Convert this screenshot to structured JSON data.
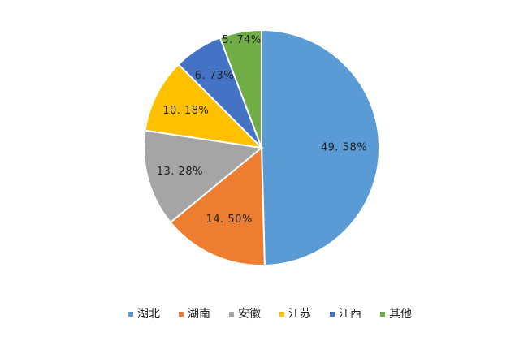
{
  "chart_data": {
    "type": "pie",
    "categories": [
      "湖北",
      "湖南",
      "安徽",
      "江苏",
      "江西",
      "其他"
    ],
    "values": [
      49.58,
      14.5,
      13.28,
      10.18,
      6.73,
      5.74
    ],
    "labels": [
      "49. 58%",
      "14. 50%",
      "13. 28%",
      "10. 18%",
      "6. 73%",
      "5. 74%"
    ],
    "colors": [
      "#5B9BD5",
      "#ED7D31",
      "#A5A5A5",
      "#FFC000",
      "#4472C4",
      "#70AD47"
    ],
    "start_angle": "12 o'clock",
    "direction": "clockwise",
    "legend": "bottom",
    "title": ""
  }
}
